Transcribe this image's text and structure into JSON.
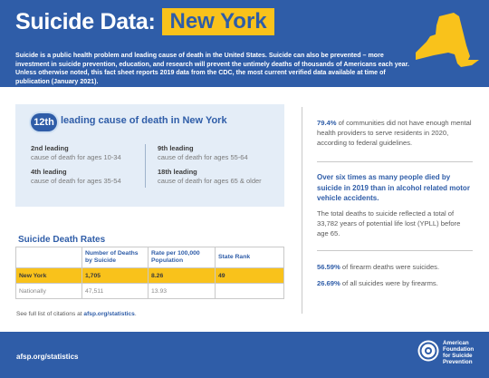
{
  "header": {
    "title": "Suicide Data:",
    "state": "New York",
    "intro": "Suicide is a public health problem and leading cause of death in the United States. Suicide can also be prevented – more investment in suicide prevention, education, and research will prevent the untimely deaths of thousands of Americans each year. Unless otherwise noted, this fact sheet reports 2019 data from the CDC, the most current verified data available at time of publication (January 2021).",
    "map_icon": "new-york-state-map-icon",
    "map_color": "#f9c21b"
  },
  "leading_cause": {
    "rank": "12th",
    "text": "leading cause of death in New York",
    "items": [
      {
        "label": "2nd leading",
        "desc": "cause of death for ages 10-34"
      },
      {
        "label": "4th leading",
        "desc": "cause of death for ages 35-54"
      },
      {
        "label": "9th leading",
        "desc": "cause of death for ages 55-64"
      },
      {
        "label": "18th leading",
        "desc": "cause of death for ages 65 & older"
      }
    ]
  },
  "rates": {
    "title": "Suicide Death Rates",
    "headers": [
      "",
      "Number of Deaths by Suicide",
      "Rate per 100,000 Population",
      "State Rank"
    ],
    "rows": [
      {
        "name": "New York",
        "deaths": "1,705",
        "rate": "8.26",
        "rank": "49"
      },
      {
        "name": "Nationally",
        "deaths": "47,511",
        "rate": "13.93",
        "rank": ""
      }
    ]
  },
  "citation": {
    "prefix": "See full list of citations at",
    "link": "afsp.org/statistics",
    "suffix": "."
  },
  "right": {
    "p1_bold": "79.4%",
    "p1_text": " of communities did not have enough mental health providers to serve residents in 2020, according to federal guidelines.",
    "callout": "Over six times as many people died by suicide in 2019 than in alcohol related motor vehicle accidents.",
    "p2": "The total deaths to suicide reflected a total of 33,782 years of potential life lost (YPLL) before age 65.",
    "p3_bold": "56.59%",
    "p3_text": " of firearm deaths were suicides.",
    "p4_bold": "26.69%",
    "p4_text": " of all suicides were by firearms."
  },
  "footer": {
    "url": "afsp.org/statistics",
    "org_name": [
      "American",
      "Foundation",
      "for Suicide",
      "Prevention"
    ],
    "logo_icon": "life-ring-icon"
  },
  "colors": {
    "brand_blue": "#2f5da8",
    "accent_yellow": "#f9c21b",
    "box_bg": "#e4edf7"
  }
}
